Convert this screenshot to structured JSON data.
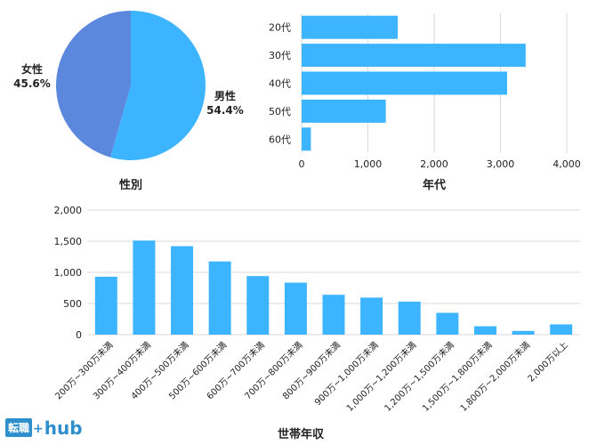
{
  "logo": {
    "box_text": "転職",
    "plus": "+",
    "text": "hub"
  },
  "colors": {
    "primary": "#3db4ff",
    "female": "#5b87dd",
    "grid": "#d9d9d9",
    "logo": "#2f8fcc"
  },
  "chart_data": [
    {
      "type": "pie",
      "title": "性別",
      "slices": [
        {
          "label": "男性",
          "value": 54.4,
          "display": "54.4%",
          "color": "#3db4ff"
        },
        {
          "label": "女性",
          "value": 45.6,
          "display": "45.6%",
          "color": "#5b87dd"
        }
      ]
    },
    {
      "type": "bar",
      "orientation": "horizontal",
      "title": "年代",
      "categories": [
        "20代",
        "30代",
        "40代",
        "50代",
        "60代"
      ],
      "values": [
        1450,
        3380,
        3100,
        1270,
        140
      ],
      "xlim": [
        0,
        4000
      ],
      "ticks": [
        0,
        1000,
        2000,
        3000,
        4000
      ],
      "tick_labels": [
        "0",
        "1,000",
        "2,000",
        "3,000",
        "4,000"
      ],
      "grid": true
    },
    {
      "type": "bar",
      "orientation": "vertical",
      "title": "世帯年収",
      "categories": [
        "200万~300万未満",
        "300万~400万未満",
        "400万~500万未満",
        "500万~600万未満",
        "600万~700万未満",
        "700万~800万未満",
        "800万~900万未満",
        "900万~1,000万未満",
        "1,000万~1,200万未満",
        "1,200万~1,500万未満",
        "1,500万~1,800万未満",
        "1,800万~2,000万未満",
        "2,000万以上"
      ],
      "values": [
        930,
        1510,
        1420,
        1175,
        940,
        835,
        640,
        595,
        530,
        350,
        135,
        60,
        165
      ],
      "ylim": [
        0,
        2000
      ],
      "ticks": [
        0,
        500,
        1000,
        1500,
        2000
      ],
      "tick_labels": [
        "0",
        "500",
        "1,000",
        "1,500",
        "2,000"
      ],
      "grid": true
    }
  ]
}
